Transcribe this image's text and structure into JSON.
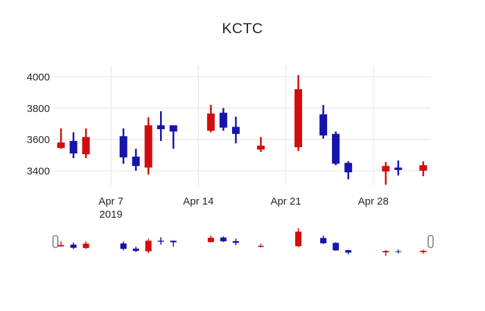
{
  "chart_data": {
    "type": "candlestick",
    "title": "KCTC",
    "x_axis": {
      "ticks": [
        {
          "label": "Apr 7",
          "sublabel": "2019",
          "day": 4
        },
        {
          "label": "Apr 14",
          "day": 11
        },
        {
          "label": "Apr 21",
          "day": 18
        },
        {
          "label": "Apr 28",
          "day": 25
        }
      ]
    },
    "y_axis": {
      "ticks": [
        3400,
        3600,
        3800,
        4000
      ],
      "range": [
        3300,
        4070
      ]
    },
    "colors": {
      "increasing": "#d20d0d",
      "decreasing": "#1515ab",
      "grid": "#e9e9e9",
      "text": "#262626",
      "handle_border": "#3a3a3a",
      "handle_fill": "#ffffff"
    },
    "ohlc": [
      {
        "date": "Apr 3",
        "day": 0,
        "open": 3545,
        "high": 3670,
        "low": 3540,
        "close": 3580
      },
      {
        "date": "Apr 4",
        "day": 1,
        "open": 3590,
        "high": 3645,
        "low": 3480,
        "close": 3510
      },
      {
        "date": "Apr 5",
        "day": 2,
        "open": 3505,
        "high": 3670,
        "low": 3480,
        "close": 3615
      },
      {
        "date": "Apr 8",
        "day": 5,
        "open": 3620,
        "high": 3670,
        "low": 3445,
        "close": 3485
      },
      {
        "date": "Apr 9",
        "day": 6,
        "open": 3490,
        "high": 3540,
        "low": 3400,
        "close": 3430
      },
      {
        "date": "Apr 10",
        "day": 7,
        "open": 3420,
        "high": 3740,
        "low": 3375,
        "close": 3690
      },
      {
        "date": "Apr 11",
        "day": 8,
        "open": 3690,
        "high": 3780,
        "low": 3590,
        "close": 3665
      },
      {
        "date": "Apr 12",
        "day": 9,
        "open": 3690,
        "high": 3690,
        "low": 3540,
        "close": 3650
      },
      {
        "date": "Apr 15",
        "day": 12,
        "open": 3655,
        "high": 3820,
        "low": 3645,
        "close": 3765
      },
      {
        "date": "Apr 16",
        "day": 13,
        "open": 3770,
        "high": 3800,
        "low": 3655,
        "close": 3675
      },
      {
        "date": "Apr 17",
        "day": 14,
        "open": 3680,
        "high": 3745,
        "low": 3575,
        "close": 3635
      },
      {
        "date": "Apr 19",
        "day": 16,
        "open": 3535,
        "high": 3615,
        "low": 3520,
        "close": 3560
      },
      {
        "date": "Apr 22",
        "day": 19,
        "open": 3550,
        "high": 4010,
        "low": 3525,
        "close": 3920
      },
      {
        "date": "Apr 24",
        "day": 21,
        "open": 3760,
        "high": 3820,
        "low": 3605,
        "close": 3625
      },
      {
        "date": "Apr 25",
        "day": 22,
        "open": 3635,
        "high": 3650,
        "low": 3435,
        "close": 3445
      },
      {
        "date": "Apr 26",
        "day": 23,
        "open": 3450,
        "high": 3460,
        "low": 3345,
        "close": 3390
      },
      {
        "date": "Apr 29",
        "day": 26,
        "open": 3395,
        "high": 3455,
        "low": 3310,
        "close": 3430
      },
      {
        "date": "Apr 30",
        "day": 27,
        "open": 3420,
        "high": 3465,
        "low": 3370,
        "close": 3405
      },
      {
        "date": "May 2",
        "day": 29,
        "open": 3400,
        "high": 3460,
        "low": 3365,
        "close": 3435
      }
    ],
    "rangeslider": {
      "visible": true,
      "value_range": [
        3310,
        4010
      ]
    }
  }
}
